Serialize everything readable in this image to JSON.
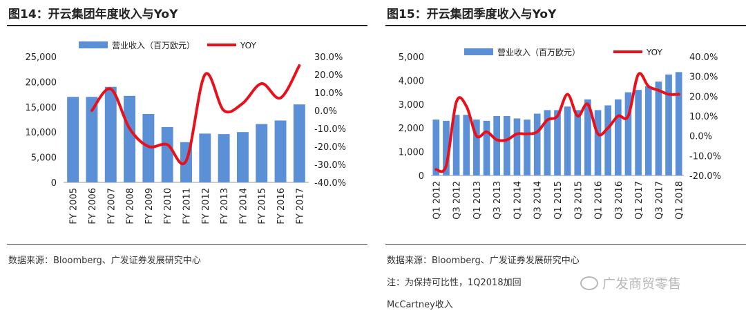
{
  "charts": [
    {
      "title": "图14：开云集团年度收入与YoY",
      "source": "数据来源：Bloomberg、广发证券发展研究中心"
    },
    {
      "title": "图15：开云集团季度收入与YoY",
      "source": "数据来源：Bloomberg、广发证券发展研究中心",
      "note_line1": "注：为保持可比性，1Q2018加回",
      "note_line2": "McCartney收入",
      "watermark": "广发商贸零售"
    }
  ],
  "colors": {
    "bar": "#5b8fd6",
    "line": "#e8111b"
  },
  "chart_data": [
    {
      "type": "bar",
      "title": "图14：开云集团年度收入与YoY",
      "categories": [
        "FY 2005",
        "FY 2006",
        "FY 2007",
        "FY 2008",
        "FY 2009",
        "FY 2010",
        "FY 2011",
        "FY 2012",
        "FY 2013",
        "FY 2014",
        "FY 2015",
        "FY 2016",
        "FY 2017"
      ],
      "series": [
        {
          "name": "营业收入（百万欧元）",
          "type": "bar",
          "axis": "left",
          "values": [
            17000,
            17000,
            19000,
            17200,
            13600,
            11000,
            8000,
            9700,
            9600,
            10000,
            11600,
            12300,
            15500
          ]
        },
        {
          "name": "YOY",
          "type": "line",
          "axis": "right",
          "values": [
            null,
            0.0,
            12.0,
            -10.0,
            -20.0,
            -19.0,
            -28.0,
            20.0,
            0.0,
            4.0,
            15.0,
            7.0,
            25.0
          ]
        }
      ],
      "left_ticks": [
        "0",
        "5,000",
        "10,000",
        "15,000",
        "20,000",
        "25,000"
      ],
      "right_ticks": [
        "-40.0%",
        "-30.0%",
        "-20.0%",
        "-10.0%",
        "0.0%",
        "10.0%",
        "20.0%",
        "30.0%"
      ],
      "ylim": [
        0,
        25000
      ],
      "y2lim": [
        -40,
        30
      ],
      "legend": "top"
    },
    {
      "type": "bar",
      "title": "图15：开云集团季度收入与YoY",
      "categories": [
        "Q1 2012",
        "Q2 2012",
        "Q3 2012",
        "Q4 2012",
        "Q1 2013",
        "Q2 2013",
        "Q3 2013",
        "Q4 2013",
        "Q1 2014",
        "Q2 2014",
        "Q3 2014",
        "Q4 2014",
        "Q1 2015",
        "Q2 2015",
        "Q3 2015",
        "Q4 2015",
        "Q1 2016",
        "Q2 2016",
        "Q3 2016",
        "Q4 2016",
        "Q1 2017",
        "Q2 2017",
        "Q3 2017",
        "Q4 2017",
        "Q1 2018"
      ],
      "x_tick_labels": [
        "Q1 2012",
        "Q3 2012",
        "Q1 2013",
        "Q3 2013",
        "Q1 2014",
        "Q3 2014",
        "Q1 2015",
        "Q3 2015",
        "Q1 2016",
        "Q3 2016",
        "Q1 2017",
        "Q3 2017",
        "Q1 2018"
      ],
      "series": [
        {
          "name": "营业收入（百万欧元）",
          "type": "bar",
          "axis": "left",
          "values": [
            2350,
            2300,
            2550,
            2550,
            2350,
            2300,
            2500,
            2500,
            2400,
            2350,
            2600,
            2750,
            2750,
            2900,
            2750,
            3200,
            2750,
            2950,
            3200,
            3500,
            3600,
            3750,
            3950,
            4250,
            4350
          ]
        },
        {
          "name": "YOY",
          "type": "line",
          "axis": "right",
          "values": [
            -17.0,
            -15.0,
            17.0,
            15.0,
            0.0,
            2.0,
            -2.0,
            -2.0,
            1.0,
            1.0,
            2.0,
            8.0,
            10.0,
            21.0,
            10.0,
            16.0,
            1.0,
            4.0,
            10.0,
            10.0,
            31.0,
            25.0,
            23.0,
            21.0,
            21.0
          ]
        }
      ],
      "left_ticks": [
        "0",
        "1,000",
        "2,000",
        "3,000",
        "4,000",
        "5,000"
      ],
      "right_ticks": [
        "-20.0%",
        "-10.0%",
        "0.0%",
        "10.0%",
        "20.0%",
        "30.0%",
        "40.0%"
      ],
      "ylim": [
        0,
        5000
      ],
      "y2lim": [
        -20,
        40
      ],
      "legend": "top"
    }
  ]
}
